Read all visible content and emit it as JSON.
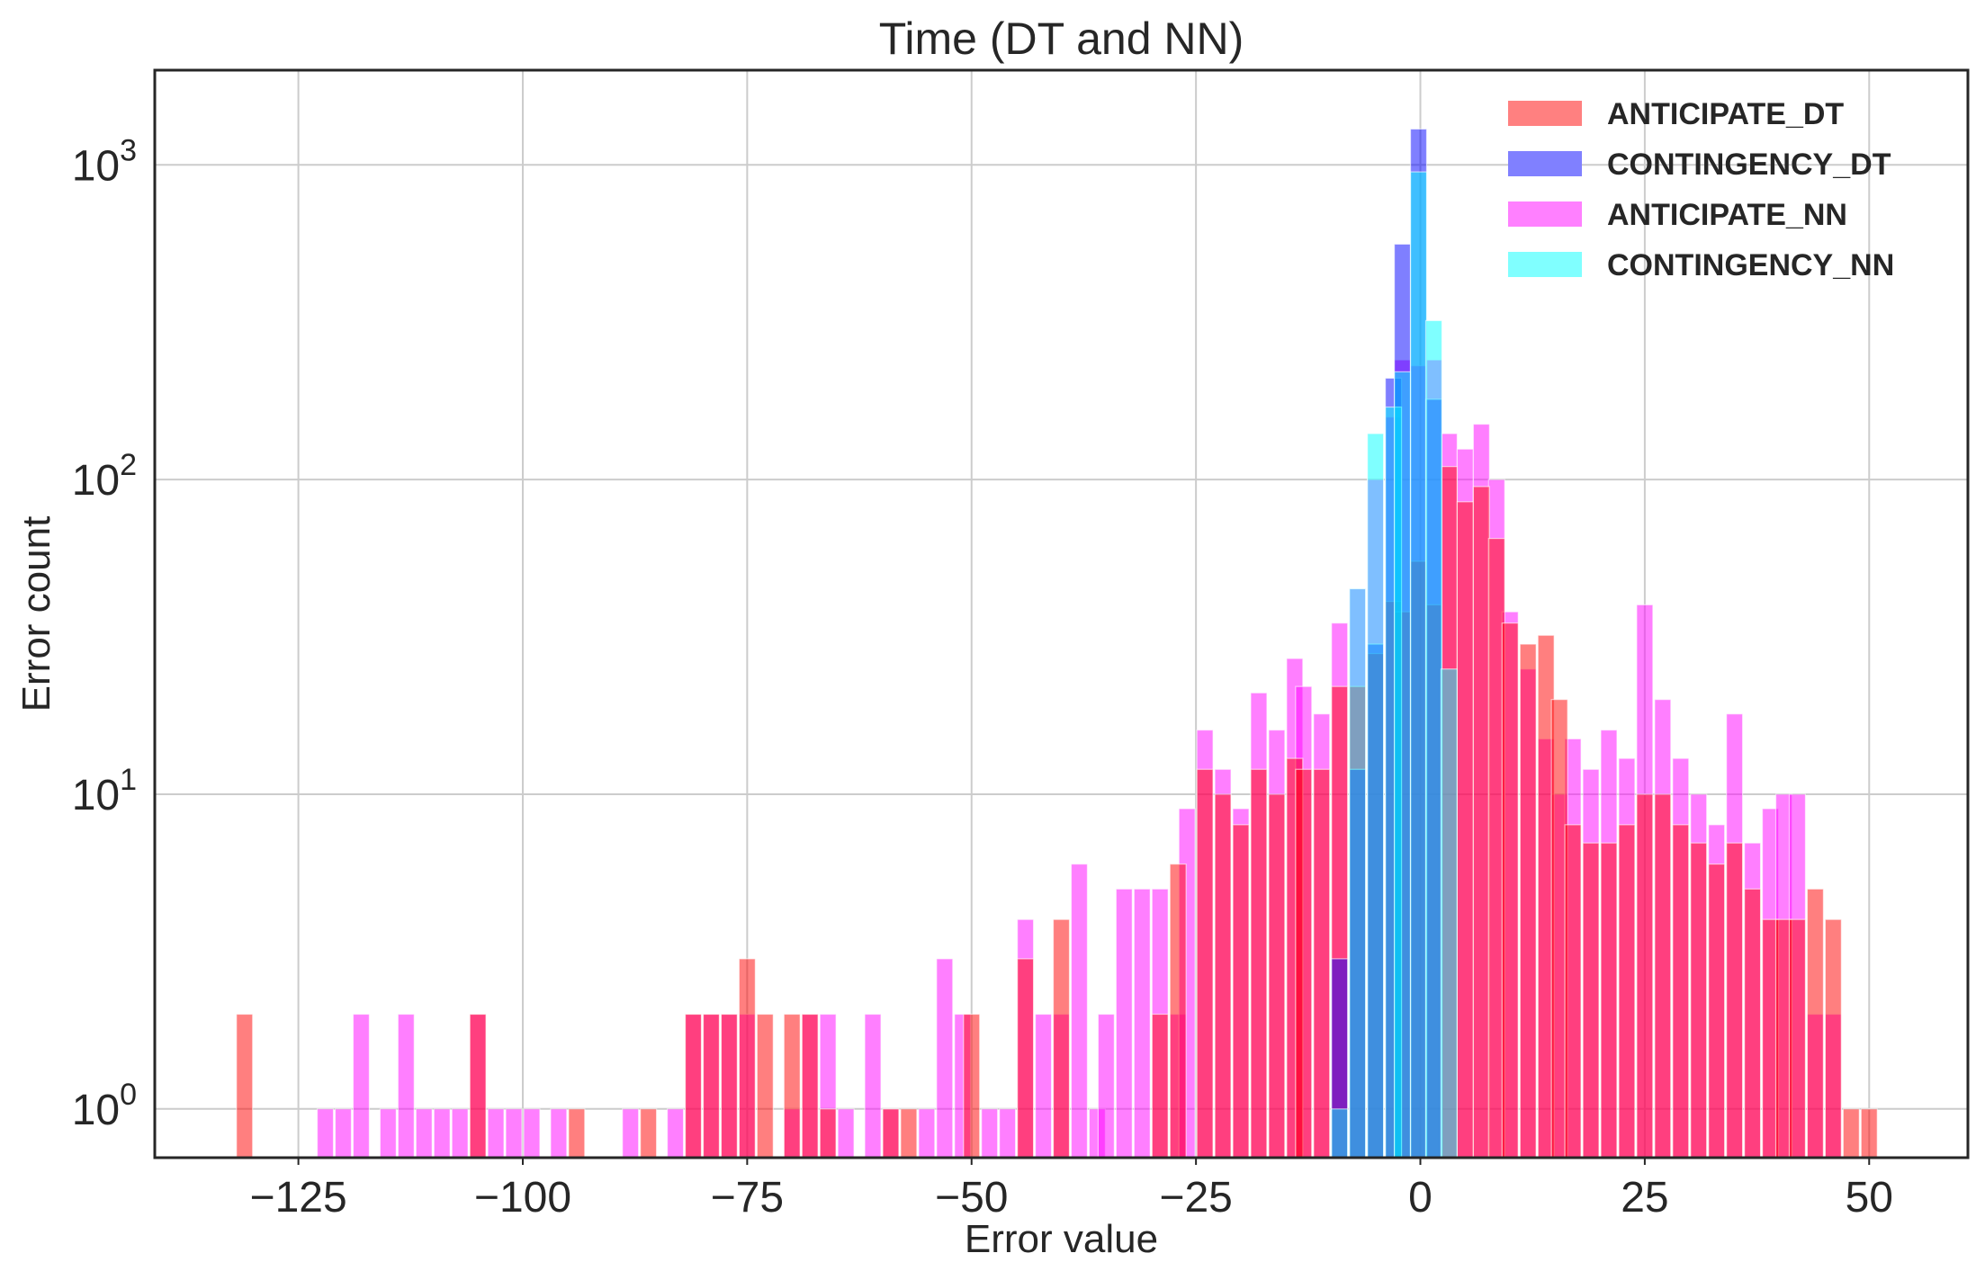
{
  "chart_data": {
    "type": "bar",
    "title": "Time (DT and NN)",
    "xlabel": "Error value",
    "ylabel": "Error count",
    "y_scale": "log",
    "xlim": [
      -141,
      61
    ],
    "ylim": [
      0.7,
      2000
    ],
    "grid": true,
    "legend_position": "top-right",
    "x_tick_labels": [
      "−125",
      "−100",
      "−75",
      "−50",
      "−25",
      "0",
      "25",
      "50"
    ],
    "x_tick_values": [
      -125,
      -100,
      -75,
      -50,
      -25,
      0,
      25,
      50
    ],
    "y_ticks": [
      {
        "value": 1,
        "base": "10",
        "exp": "0"
      },
      {
        "value": 10,
        "base": "10",
        "exp": "1"
      },
      {
        "value": 100,
        "base": "10",
        "exp": "2"
      },
      {
        "value": 1000,
        "base": "10",
        "exp": "3"
      }
    ],
    "bin_width": 1.8,
    "series": [
      {
        "name": "ANTICIPATE_NN",
        "color": "#ff00ff",
        "opacity": 0.5,
        "bins": [
          [
            -122,
            1
          ],
          [
            -120,
            1
          ],
          [
            -118,
            2
          ],
          [
            -115,
            1
          ],
          [
            -113,
            2
          ],
          [
            -111,
            1
          ],
          [
            -109,
            1
          ],
          [
            -107,
            1
          ],
          [
            -105,
            2
          ],
          [
            -103,
            1
          ],
          [
            -101,
            1
          ],
          [
            -99,
            1
          ],
          [
            -96,
            1
          ],
          [
            -88,
            1
          ],
          [
            -83,
            1
          ],
          [
            -81,
            2
          ],
          [
            -79,
            2
          ],
          [
            -77,
            2
          ],
          [
            -75,
            2
          ],
          [
            -70,
            1
          ],
          [
            -68,
            2
          ],
          [
            -66,
            2
          ],
          [
            -64,
            1
          ],
          [
            -61,
            2
          ],
          [
            -59,
            1
          ],
          [
            -55,
            1
          ],
          [
            -53,
            3
          ],
          [
            -51,
            2
          ],
          [
            -48,
            1
          ],
          [
            -46,
            1
          ],
          [
            -44,
            4
          ],
          [
            -42,
            2
          ],
          [
            -40,
            2
          ],
          [
            -38,
            6
          ],
          [
            -36,
            1
          ],
          [
            -35,
            2
          ],
          [
            -33,
            5
          ],
          [
            -31,
            5
          ],
          [
            -29,
            5
          ],
          [
            -27,
            2
          ],
          [
            -26,
            9
          ],
          [
            -24,
            16
          ],
          [
            -22,
            12
          ],
          [
            -20,
            9
          ],
          [
            -18,
            21
          ],
          [
            -16,
            16
          ],
          [
            -14,
            27
          ],
          [
            -13,
            22
          ],
          [
            -11,
            18
          ],
          [
            -9,
            35
          ],
          [
            -7,
            45
          ],
          [
            -5,
            100
          ],
          [
            -3,
            158
          ],
          [
            -2,
            240
          ],
          [
            -0.2,
            230
          ],
          [
            1.5,
            240
          ],
          [
            3.2,
            140
          ],
          [
            5,
            125
          ],
          [
            6.8,
            150
          ],
          [
            8.5,
            100
          ],
          [
            10,
            38
          ],
          [
            12,
            25
          ],
          [
            14,
            15
          ],
          [
            15.5,
            10
          ],
          [
            17,
            15
          ],
          [
            19,
            12
          ],
          [
            21,
            16
          ],
          [
            23,
            13
          ],
          [
            25,
            40
          ],
          [
            27,
            20
          ],
          [
            29,
            13
          ],
          [
            31,
            10
          ],
          [
            33,
            8
          ],
          [
            35,
            18
          ],
          [
            37,
            7
          ],
          [
            39,
            9
          ],
          [
            40.5,
            10
          ],
          [
            42,
            10
          ],
          [
            44,
            2
          ],
          [
            46,
            2
          ]
        ]
      },
      {
        "name": "ANTICIPATE_DT",
        "color": "#ff0000",
        "opacity": 0.5,
        "bins": [
          [
            -131,
            2
          ],
          [
            -105,
            2
          ],
          [
            -94,
            1
          ],
          [
            -86,
            1
          ],
          [
            -81,
            2
          ],
          [
            -79,
            2
          ],
          [
            -77,
            2
          ],
          [
            -75,
            3
          ],
          [
            -73,
            2
          ],
          [
            -70,
            2
          ],
          [
            -68,
            2
          ],
          [
            -66,
            1
          ],
          [
            -59,
            1
          ],
          [
            -57,
            1
          ],
          [
            -50,
            2
          ],
          [
            -44,
            3
          ],
          [
            -40,
            4
          ],
          [
            -29,
            2
          ],
          [
            -27,
            6
          ],
          [
            -24,
            12
          ],
          [
            -22,
            10
          ],
          [
            -20,
            8
          ],
          [
            -18,
            12
          ],
          [
            -16,
            10
          ],
          [
            -14,
            13
          ],
          [
            -13,
            12
          ],
          [
            -11,
            12
          ],
          [
            -9,
            22
          ],
          [
            -7,
            22
          ],
          [
            -5,
            28
          ],
          [
            -3,
            41
          ],
          [
            -2,
            38
          ],
          [
            -0.2,
            55
          ],
          [
            1.5,
            40
          ],
          [
            3.2,
            110
          ],
          [
            5,
            85
          ],
          [
            6.8,
            95
          ],
          [
            8.5,
            65
          ],
          [
            10,
            35
          ],
          [
            12,
            30
          ],
          [
            14,
            32
          ],
          [
            15.5,
            20
          ],
          [
            17,
            8
          ],
          [
            19,
            7
          ],
          [
            21,
            7
          ],
          [
            23,
            8
          ],
          [
            25,
            10
          ],
          [
            27,
            10
          ],
          [
            29,
            8
          ],
          [
            31,
            7
          ],
          [
            33,
            6
          ],
          [
            35,
            7
          ],
          [
            37,
            5
          ],
          [
            39,
            4
          ],
          [
            40.5,
            4
          ],
          [
            42,
            4
          ],
          [
            44,
            5
          ],
          [
            46,
            4
          ],
          [
            48,
            1
          ],
          [
            50,
            1
          ]
        ]
      },
      {
        "name": "CONTINGENCY_DT",
        "color": "#0000ff",
        "opacity": 0.5,
        "bins": [
          [
            -9,
            3
          ],
          [
            -7,
            12
          ],
          [
            -5,
            30
          ],
          [
            -3,
            210
          ],
          [
            -2,
            560
          ],
          [
            -0.2,
            1300
          ],
          [
            1.5,
            180
          ],
          [
            3.2,
            0
          ]
        ]
      },
      {
        "name": "CONTINGENCY_NN",
        "color": "#00ffff",
        "opacity": 0.5,
        "bins": [
          [
            -9,
            1
          ],
          [
            -7,
            45
          ],
          [
            -5,
            140
          ],
          [
            -3,
            170
          ],
          [
            -2,
            220
          ],
          [
            -0.2,
            950
          ],
          [
            1.5,
            320
          ],
          [
            3.2,
            25
          ]
        ]
      }
    ],
    "legend_order": [
      "ANTICIPATE_DT",
      "CONTINGENCY_DT",
      "ANTICIPATE_NN",
      "CONTINGENCY_NN"
    ],
    "legend_colors": {
      "ANTICIPATE_DT": "#ff8080",
      "CONTINGENCY_DT": "#8080ff",
      "ANTICIPATE_NN": "#ff80ff",
      "CONTINGENCY_NN": "#80ffff"
    }
  }
}
